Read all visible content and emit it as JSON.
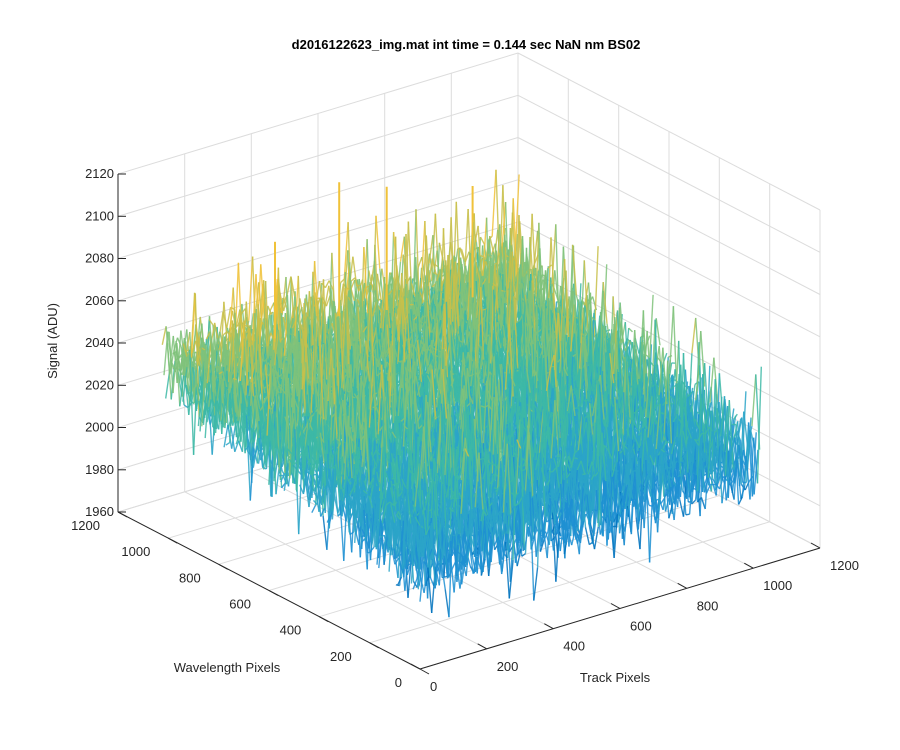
{
  "chart_data": {
    "type": "surface",
    "title": "d2016122623_img.mat int time = 0.144 sec  NaN nm BS02",
    "xlabel": "Track Pixels",
    "ylabel": "Wavelength Pixels",
    "zlabel": "Signal (ADU)",
    "xlim": [
      0,
      1200
    ],
    "ylim": [
      0,
      1200
    ],
    "zlim": [
      1960,
      2120
    ],
    "x_ticks": [
      "0",
      "200",
      "400",
      "600",
      "800",
      "1000",
      "1200"
    ],
    "y_ticks": [
      "0",
      "200",
      "400",
      "600",
      "800",
      "1000",
      "1200"
    ],
    "z_ticks": [
      "1960",
      "1980",
      "2000",
      "2020",
      "2040",
      "2060",
      "2080",
      "2100",
      "2120"
    ],
    "grid": true,
    "surface": {
      "x_range": [
        0,
        1024
      ],
      "y_range": [
        0,
        1024
      ],
      "base_level_wavelength_0": 2010,
      "base_level_wavelength_1024": 2040,
      "noise_amplitude": 25,
      "max_spike": 2103,
      "min_dip": 1972
    },
    "colormap": [
      "#0072BD",
      "#1E90D2",
      "#2CA5C8",
      "#3DB8A6",
      "#7FC27A",
      "#C8C04A",
      "#F0C23A"
    ]
  }
}
